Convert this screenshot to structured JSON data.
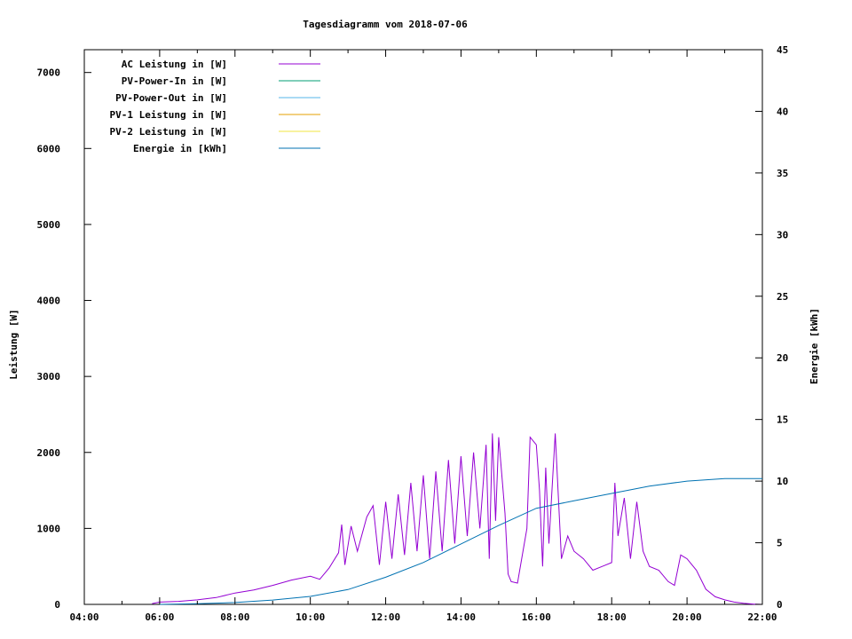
{
  "chart_data": {
    "type": "line",
    "title": "Tagesdiagramm vom 2018-07-06",
    "ylabel": "Leistung [W]",
    "y2label": "Energie [kWh]",
    "xlim": [
      "04:00",
      "22:00"
    ],
    "ylim": [
      0,
      7300
    ],
    "y2lim": [
      0,
      45
    ],
    "x_ticks": [
      "04:00",
      "06:00",
      "08:00",
      "10:00",
      "12:00",
      "14:00",
      "16:00",
      "18:00",
      "20:00",
      "22:00"
    ],
    "y_ticks": [
      "0",
      "1000",
      "2000",
      "3000",
      "4000",
      "5000",
      "6000",
      "7000"
    ],
    "y2_ticks": [
      "0",
      "5",
      "10",
      "15",
      "20",
      "25",
      "30",
      "35",
      "40",
      "45"
    ],
    "grid": false,
    "legend_position": "top-left",
    "series": [
      {
        "name": "AC Leistung in [W]",
        "axis": "left",
        "color": "#9400d3",
        "points": [
          [
            "05:48",
            10
          ],
          [
            "06:00",
            30
          ],
          [
            "06:30",
            40
          ],
          [
            "07:00",
            60
          ],
          [
            "07:30",
            90
          ],
          [
            "08:00",
            150
          ],
          [
            "08:30",
            190
          ],
          [
            "09:00",
            250
          ],
          [
            "09:30",
            320
          ],
          [
            "10:00",
            370
          ],
          [
            "10:15",
            330
          ],
          [
            "10:30",
            480
          ],
          [
            "10:45",
            680
          ],
          [
            "10:50",
            1050
          ],
          [
            "10:55",
            520
          ],
          [
            "11:05",
            1030
          ],
          [
            "11:15",
            700
          ],
          [
            "11:30",
            1150
          ],
          [
            "11:40",
            1300
          ],
          [
            "11:50",
            520
          ],
          [
            "12:00",
            1350
          ],
          [
            "12:10",
            600
          ],
          [
            "12:20",
            1450
          ],
          [
            "12:30",
            650
          ],
          [
            "12:40",
            1600
          ],
          [
            "12:50",
            700
          ],
          [
            "13:00",
            1700
          ],
          [
            "13:10",
            600
          ],
          [
            "13:20",
            1750
          ],
          [
            "13:30",
            700
          ],
          [
            "13:40",
            1900
          ],
          [
            "13:50",
            800
          ],
          [
            "14:00",
            1950
          ],
          [
            "14:10",
            900
          ],
          [
            "14:20",
            2000
          ],
          [
            "14:30",
            1000
          ],
          [
            "14:40",
            2100
          ],
          [
            "14:45",
            600
          ],
          [
            "14:50",
            2250
          ],
          [
            "14:55",
            1100
          ],
          [
            "15:00",
            2200
          ],
          [
            "15:10",
            1200
          ],
          [
            "15:15",
            400
          ],
          [
            "15:20",
            300
          ],
          [
            "15:30",
            280
          ],
          [
            "15:45",
            1000
          ],
          [
            "15:50",
            2200
          ],
          [
            "16:00",
            2100
          ],
          [
            "16:05",
            1500
          ],
          [
            "16:10",
            500
          ],
          [
            "16:15",
            1800
          ],
          [
            "16:20",
            800
          ],
          [
            "16:30",
            2250
          ],
          [
            "16:40",
            600
          ],
          [
            "16:50",
            900
          ],
          [
            "17:00",
            700
          ],
          [
            "17:15",
            600
          ],
          [
            "17:30",
            450
          ],
          [
            "17:45",
            500
          ],
          [
            "18:00",
            550
          ],
          [
            "18:05",
            1600
          ],
          [
            "18:10",
            900
          ],
          [
            "18:20",
            1400
          ],
          [
            "18:30",
            600
          ],
          [
            "18:40",
            1350
          ],
          [
            "18:50",
            700
          ],
          [
            "19:00",
            500
          ],
          [
            "19:15",
            450
          ],
          [
            "19:30",
            300
          ],
          [
            "19:40",
            250
          ],
          [
            "19:50",
            650
          ],
          [
            "20:00",
            600
          ],
          [
            "20:15",
            450
          ],
          [
            "20:30",
            200
          ],
          [
            "20:45",
            100
          ],
          [
            "21:00",
            60
          ],
          [
            "21:15",
            30
          ],
          [
            "21:30",
            15
          ],
          [
            "21:45",
            5
          ],
          [
            "22:00",
            0
          ]
        ]
      },
      {
        "name": "PV-Power-In in [W]",
        "axis": "left",
        "color": "#009e73",
        "points": []
      },
      {
        "name": "PV-Power-Out in [W]",
        "axis": "left",
        "color": "#56b4e9",
        "points": []
      },
      {
        "name": "PV-1 Leistung in [W]",
        "axis": "left",
        "color": "#e69f00",
        "points": []
      },
      {
        "name": "PV-2 Leistung in [W]",
        "axis": "left",
        "color": "#f0e442",
        "points": []
      },
      {
        "name": "Energie in [kWh]",
        "axis": "right",
        "color": "#0072b2",
        "points": [
          [
            "06:00",
            0.0
          ],
          [
            "07:00",
            0.05
          ],
          [
            "08:00",
            0.15
          ],
          [
            "09:00",
            0.35
          ],
          [
            "10:00",
            0.65
          ],
          [
            "11:00",
            1.2
          ],
          [
            "12:00",
            2.2
          ],
          [
            "13:00",
            3.4
          ],
          [
            "14:00",
            4.9
          ],
          [
            "15:00",
            6.4
          ],
          [
            "16:00",
            7.8
          ],
          [
            "17:00",
            8.4
          ],
          [
            "18:00",
            9.0
          ],
          [
            "19:00",
            9.6
          ],
          [
            "20:00",
            10.0
          ],
          [
            "21:00",
            10.2
          ],
          [
            "22:00",
            10.2
          ]
        ]
      }
    ]
  }
}
